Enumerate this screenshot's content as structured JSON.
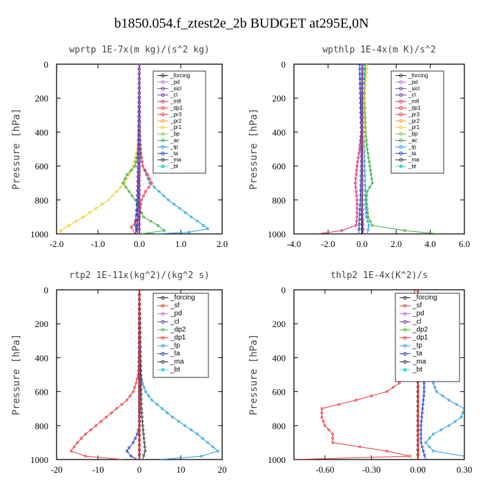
{
  "figure_title": "b1850.054.f_ztest2e_2b  BUDGET at295E,0N",
  "colors": {
    "_forcing": "#222222",
    "_pd": "#bb66dd",
    "_sicl": "#7733aa",
    "_cl": "#6633aa",
    "_mfl": "#dd2266",
    "_dp1": "#ee3333",
    "_pr3": "#ee3333",
    "_pr2": "#ff9933",
    "_pr1": "#eecc22",
    "_bp": "#66cc44",
    "_ac": "#33aa33",
    "_tp": "#2299dd",
    "_ta": "#2233cc",
    "_ma": "#333333",
    "_bt": "#33dddd",
    "_sf": "#dd3333",
    "_dp2": "#33bb33"
  },
  "chart_data": [
    {
      "type": "line",
      "title": "wprtp  1E-7x(m kg)/(s^2 kg)",
      "ylabel": "Pressure [hPa]",
      "xlim": [
        -2.0,
        2.0
      ],
      "ylim": [
        1000,
        0
      ],
      "x_ticks": [
        "-2.0",
        "-1.0",
        "0.0",
        "1.0",
        "2.0"
      ],
      "y_ticks": [
        "0",
        "200",
        "400",
        "600",
        "800",
        "1000"
      ],
      "legend": [
        "_forcing",
        "_pd",
        "_sicl",
        "_cl",
        "_mfl",
        "_dp1",
        "_pr3",
        "_pr2",
        "_pr1",
        "_bp",
        "_ac",
        "_tp",
        "_ta",
        "_ma",
        "_bt"
      ],
      "series": [
        {
          "name": "_pr1",
          "p": [
            0,
            400,
            500,
            600,
            700,
            800,
            900,
            950,
            980,
            1000
          ],
          "x": [
            0.0,
            -0.02,
            -0.05,
            -0.15,
            -0.35,
            -0.75,
            -1.35,
            -1.7,
            -1.9,
            -1.95
          ]
        },
        {
          "name": "_tp",
          "p": [
            0,
            400,
            500,
            600,
            700,
            800,
            900,
            950,
            970,
            990,
            1000
          ],
          "x": [
            0.0,
            0.01,
            0.03,
            0.08,
            0.25,
            0.7,
            1.25,
            1.55,
            1.65,
            1.2,
            0.4
          ]
        },
        {
          "name": "_ac",
          "p": [
            0,
            400,
            500,
            600,
            650,
            700,
            750,
            800,
            900,
            950,
            980,
            1000
          ],
          "x": [
            0.0,
            0.0,
            -0.02,
            -0.1,
            -0.3,
            -0.4,
            -0.25,
            -0.1,
            0.1,
            0.45,
            0.6,
            0.05
          ]
        },
        {
          "name": "_dp1",
          "p": [
            0,
            400,
            500,
            600,
            650,
            700,
            750,
            800,
            900,
            960,
            1000
          ],
          "x": [
            0.0,
            0.0,
            0.02,
            0.08,
            0.2,
            0.3,
            0.15,
            0.05,
            0.0,
            -0.2,
            -0.1
          ]
        },
        {
          "name": "_ma",
          "p": [
            0,
            500,
            800,
            950,
            1000
          ],
          "x": [
            0.0,
            0.0,
            -0.02,
            -0.05,
            -0.1
          ]
        },
        {
          "name": "_ta",
          "p": [
            0,
            500,
            800,
            950,
            1000
          ],
          "x": [
            0.0,
            -0.02,
            -0.05,
            -0.1,
            -0.05
          ]
        },
        {
          "name": "_forcing",
          "p": [
            0,
            200,
            400,
            600,
            800,
            1000
          ],
          "x": [
            0.0,
            0.0,
            0.0,
            0.0,
            0.0,
            0.0
          ]
        },
        {
          "name": "_sicl",
          "p": [
            0,
            200,
            400,
            600,
            800,
            1000
          ],
          "x": [
            0.0,
            0.0,
            0.0,
            0.0,
            0.0,
            0.0
          ]
        },
        {
          "name": "_cl",
          "p": [
            0,
            200,
            400,
            600,
            800,
            1000
          ],
          "x": [
            -0.01,
            -0.01,
            -0.01,
            -0.02,
            -0.03,
            -0.05
          ]
        },
        {
          "name": "_pd",
          "p": [
            0,
            200,
            400,
            600,
            800,
            1000
          ],
          "x": [
            0.0,
            0.0,
            0.0,
            0.0,
            0.0,
            0.0
          ]
        }
      ]
    },
    {
      "type": "line",
      "title": "wpthlp  1E-4x(m K)/s^2",
      "ylabel": "Pressure [hPa]",
      "xlim": [
        -4.0,
        6.0
      ],
      "ylim": [
        1000,
        0
      ],
      "x_ticks": [
        "-4.0",
        "-2.0",
        "0.0",
        "2.0",
        "4.0",
        "6.0"
      ],
      "y_ticks": [
        "0",
        "200",
        "400",
        "600",
        "800",
        "1000"
      ],
      "legend": [
        "_forcing",
        "_pd",
        "_sicl",
        "_cl",
        "_mfl",
        "_dp1",
        "_pr3",
        "_pr2",
        "_pr1",
        "_bp",
        "_ac",
        "_tp",
        "_ta",
        "_ma",
        "_bt"
      ],
      "series": [
        {
          "name": "_ac",
          "p": [
            0,
            200,
            400,
            500,
            600,
            700,
            750,
            800,
            900,
            950,
            980,
            1000
          ],
          "x": [
            0.1,
            0.15,
            0.2,
            0.3,
            0.45,
            0.6,
            0.3,
            0.25,
            0.35,
            0.6,
            2.5,
            4.5
          ]
        },
        {
          "name": "_mfl",
          "p": [
            0,
            200,
            400,
            500,
            600,
            700,
            800,
            900,
            950,
            980,
            1000
          ],
          "x": [
            0.0,
            -0.05,
            -0.05,
            -0.15,
            -0.3,
            -0.4,
            -0.3,
            -0.3,
            -0.35,
            -1.2,
            -2.6
          ]
        },
        {
          "name": "_tp",
          "p": [
            0,
            200,
            400,
            600,
            800,
            900,
            950,
            1000
          ],
          "x": [
            0.2,
            0.1,
            0.1,
            0.15,
            0.2,
            0.25,
            0.4,
            0.3
          ]
        },
        {
          "name": "_pr1",
          "p": [
            0,
            100,
            200,
            400,
            600,
            800,
            1000
          ],
          "x": [
            0.3,
            0.2,
            0.15,
            0.1,
            0.05,
            0.05,
            0.0
          ]
        },
        {
          "name": "_ta",
          "p": [
            0,
            200,
            400,
            600,
            800,
            1000
          ],
          "x": [
            -0.15,
            -0.1,
            -0.05,
            -0.05,
            -0.1,
            -0.2
          ]
        },
        {
          "name": "_forcing",
          "p": [
            0,
            200,
            400,
            600,
            800,
            1000
          ],
          "x": [
            0.0,
            0.0,
            0.0,
            0.0,
            0.0,
            0.0
          ]
        },
        {
          "name": "_pd",
          "p": [
            0,
            200,
            400,
            600,
            800,
            1000
          ],
          "x": [
            0.0,
            0.0,
            0.0,
            0.0,
            0.0,
            0.1
          ]
        }
      ]
    },
    {
      "type": "line",
      "title": "rtp2  1E-11x(kg^2)/(kg^2 s)",
      "ylabel": "Pressure [hPa]",
      "xlim": [
        -20,
        20
      ],
      "ylim": [
        1000,
        0
      ],
      "x_ticks": [
        "-20",
        "-10",
        "0",
        "10",
        "20"
      ],
      "y_ticks": [
        "0",
        "200",
        "400",
        "600",
        "800",
        "1000"
      ],
      "legend": [
        "_forcing",
        "_sf",
        "_pd",
        "_cl",
        "_dp2",
        "_dp1",
        "_tp",
        "_ta",
        "_ma",
        "_bt"
      ],
      "series": [
        {
          "name": "_dp1",
          "p": [
            0,
            400,
            500,
            550,
            600,
            650,
            700,
            750,
            800,
            850,
            900,
            950,
            980,
            1000
          ],
          "x": [
            0.0,
            -0.1,
            -0.3,
            -0.8,
            -1.5,
            -3.0,
            -5.5,
            -8.0,
            -10.5,
            -13.0,
            -15.0,
            -16.5,
            -13.0,
            -4.0
          ]
        },
        {
          "name": "_tp",
          "p": [
            0,
            400,
            500,
            550,
            600,
            650,
            700,
            750,
            800,
            850,
            900,
            950,
            980,
            1000
          ],
          "x": [
            0.0,
            0.1,
            0.3,
            0.8,
            1.5,
            3.0,
            5.5,
            8.0,
            11.0,
            14.0,
            16.5,
            19.0,
            15.0,
            5.0
          ]
        },
        {
          "name": "_ta",
          "p": [
            0,
            500,
            700,
            800,
            850,
            900,
            930,
            950,
            980,
            1000
          ],
          "x": [
            0.0,
            0.0,
            0.0,
            0.0,
            -0.5,
            -1.5,
            -2.5,
            -3.0,
            -2.0,
            -0.5
          ]
        },
        {
          "name": "_ma",
          "p": [
            0,
            700,
            800,
            900,
            950,
            1000
          ],
          "x": [
            0.0,
            0.5,
            0.8,
            1.2,
            1.4,
            0.8
          ]
        },
        {
          "name": "_forcing",
          "p": [
            0,
            200,
            400,
            600,
            800,
            1000
          ],
          "x": [
            0.0,
            0.0,
            0.0,
            0.0,
            0.0,
            0.0
          ]
        },
        {
          "name": "_sf",
          "p": [
            0,
            200,
            400,
            600,
            800,
            1000
          ],
          "x": [
            0.0,
            0.0,
            0.0,
            0.0,
            0.0,
            0.0
          ]
        }
      ]
    },
    {
      "type": "line",
      "title": "thlp2  1E-4x(K^2)/s",
      "ylabel": "Pressure [hPa]",
      "xlim": [
        -0.8,
        0.3
      ],
      "ylim": [
        1000,
        0
      ],
      "x_ticks": [
        "-0.60",
        "-0.30",
        "0.00",
        "0.30"
      ],
      "y_ticks": [
        "0",
        "200",
        "400",
        "600",
        "800",
        "1000"
      ],
      "legend": [
        "_forcing",
        "_sf",
        "_pd",
        "_cl",
        "_dp2",
        "_dp1",
        "_tp",
        "_ta",
        "_ma",
        "_bt"
      ],
      "series": [
        {
          "name": "_dp1",
          "p": [
            0,
            100,
            200,
            300,
            400,
            500,
            550,
            600,
            650,
            700,
            750,
            800,
            850,
            900,
            950,
            980,
            1000
          ],
          "x": [
            -0.02,
            -0.03,
            -0.04,
            -0.05,
            -0.06,
            -0.08,
            -0.12,
            -0.2,
            -0.4,
            -0.62,
            -0.62,
            -0.6,
            -0.55,
            -0.55,
            -0.2,
            -0.05,
            -0.8
          ]
        },
        {
          "name": "_tp",
          "p": [
            0,
            200,
            400,
            500,
            550,
            600,
            650,
            700,
            750,
            800,
            850,
            900,
            950,
            980,
            1000
          ],
          "x": [
            0.0,
            0.02,
            0.05,
            0.08,
            0.1,
            0.12,
            0.2,
            0.3,
            0.28,
            0.2,
            0.1,
            0.05,
            0.1,
            0.3,
            0.4
          ]
        },
        {
          "name": "_ta",
          "p": [
            0,
            200,
            400,
            500,
            600,
            700,
            800,
            900,
            1000
          ],
          "x": [
            0.0,
            0.02,
            0.03,
            0.04,
            0.04,
            0.03,
            0.02,
            0.02,
            0.05
          ]
        },
        {
          "name": "_ma",
          "p": [
            0,
            200,
            400,
            600,
            800,
            1000
          ],
          "x": [
            0.0,
            0.0,
            0.0,
            0.0,
            0.0,
            0.0
          ]
        },
        {
          "name": "_forcing",
          "p": [
            0,
            200,
            400,
            600,
            800,
            1000
          ],
          "x": [
            0.0,
            0.0,
            0.0,
            0.0,
            0.0,
            0.0
          ]
        },
        {
          "name": "_sf",
          "p": [
            0,
            200,
            400,
            600,
            800,
            1000
          ],
          "x": [
            0.0,
            0.0,
            0.0,
            0.0,
            0.0,
            0.0
          ]
        }
      ]
    }
  ]
}
